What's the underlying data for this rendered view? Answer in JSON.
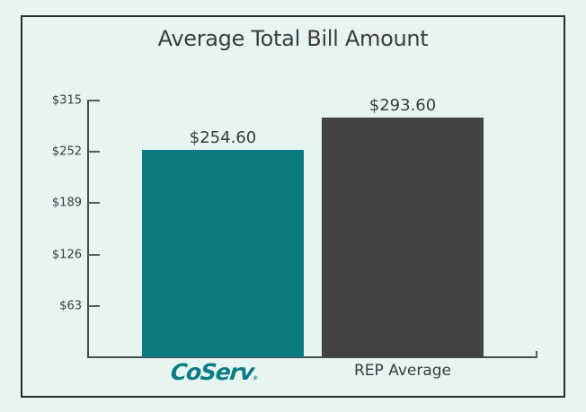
{
  "chart_data": {
    "type": "bar",
    "title": "Average Total Bill Amount",
    "categories": [
      "CoServ",
      "REP Average"
    ],
    "values": [
      254.6,
      293.6
    ],
    "value_labels": [
      "$254.60",
      "$293.60"
    ],
    "colors": [
      "#0c7b82",
      "#424345"
    ],
    "xlabel": "",
    "ylabel": "",
    "ylim": [
      0,
      315
    ],
    "yticks": [
      63,
      126,
      189,
      252,
      315
    ],
    "ytick_labels": [
      "$63",
      "$126",
      "$189",
      "$252",
      "$315"
    ],
    "grid": false,
    "legend": null
  },
  "colors": {
    "background": "#e6f5f2",
    "frame": "#2a2b2d",
    "coserv_teal": "#0c7b82",
    "rep_gray": "#424345",
    "text": "#3a3b3d"
  },
  "logo": {
    "text": "CoServ",
    "mark": "®"
  }
}
